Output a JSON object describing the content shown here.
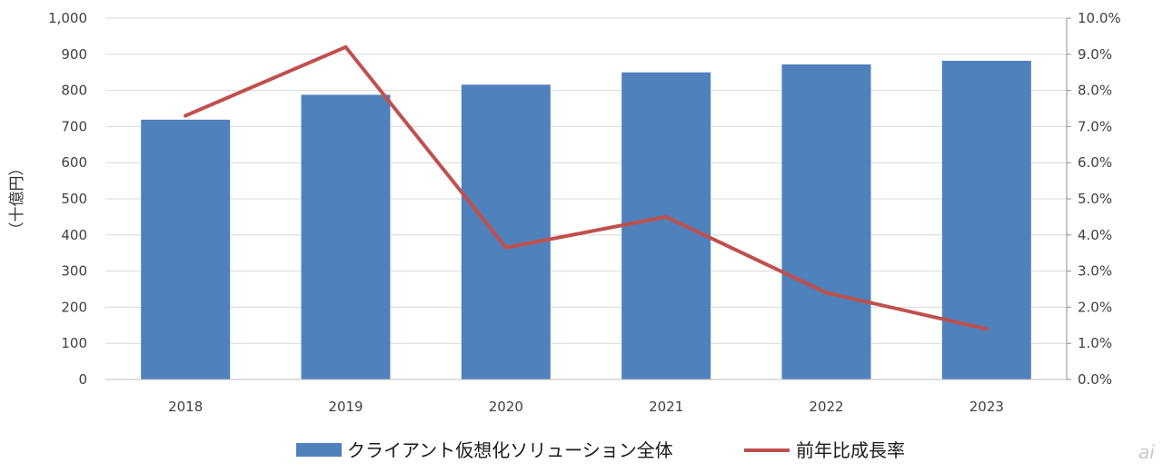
{
  "chart_data": {
    "type": "bar",
    "categories": [
      "2018",
      "2019",
      "2020",
      "2021",
      "2022",
      "2023"
    ],
    "series": [
      {
        "name": "クライアント仮想化ソリューション全体",
        "type": "bar",
        "axis": "left",
        "values": [
          719,
          788,
          816,
          850,
          872,
          882
        ],
        "color": "#4F81BD"
      },
      {
        "name": "前年比成長率",
        "type": "line",
        "axis": "right",
        "values": [
          7.3,
          9.2,
          3.65,
          4.5,
          2.4,
          1.4
        ],
        "color": "#C0504D"
      }
    ],
    "ylabel": "（十億円）",
    "ylim": [
      0,
      1000
    ],
    "yticks": [
      "0",
      "100",
      "200",
      "300",
      "400",
      "500",
      "600",
      "700",
      "800",
      "900",
      "1,000"
    ],
    "y2lim": [
      0,
      10
    ],
    "y2ticks": [
      "0.0%",
      "1.0%",
      "2.0%",
      "3.0%",
      "4.0%",
      "5.0%",
      "6.0%",
      "7.0%",
      "8.0%",
      "9.0%",
      "10.0%"
    ],
    "grid": true,
    "legend": "bottom"
  },
  "watermark": "ai"
}
